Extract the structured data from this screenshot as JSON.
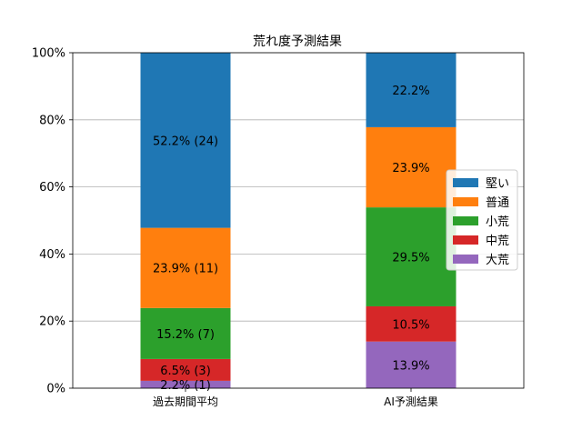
{
  "chart_data": {
    "type": "bar",
    "stacked": true,
    "title": "荒れ度予測結果",
    "xlabel": "",
    "ylabel": "",
    "ylim": [
      0,
      100
    ],
    "y_ticks": [
      "0%",
      "20%",
      "40%",
      "60%",
      "80%",
      "100%"
    ],
    "y_tick_values": [
      0,
      20,
      40,
      60,
      80,
      100
    ],
    "grid": "horizontal",
    "legend_position": "center-right",
    "categories": [
      "過去期間平均",
      "AI予測結果"
    ],
    "series": [
      {
        "name": "大荒",
        "color": "#9467bd",
        "values": [
          2.2,
          13.9
        ],
        "labels": [
          "2.2% (1)",
          "13.9%"
        ]
      },
      {
        "name": "中荒",
        "color": "#d62728",
        "values": [
          6.5,
          10.5
        ],
        "labels": [
          "6.5% (3)",
          "10.5%"
        ]
      },
      {
        "name": "小荒",
        "color": "#2ca02c",
        "values": [
          15.2,
          29.5
        ],
        "labels": [
          "15.2% (7)",
          "29.5%"
        ]
      },
      {
        "name": "普通",
        "color": "#ff7f0e",
        "values": [
          23.9,
          23.9
        ],
        "labels": [
          "23.9% (11)",
          "23.9%"
        ]
      },
      {
        "name": "堅い",
        "color": "#1f77b4",
        "values": [
          52.2,
          22.2
        ],
        "labels": [
          "52.2% (24)",
          "22.2%"
        ]
      }
    ],
    "legend_order": [
      "堅い",
      "普通",
      "小荒",
      "中荒",
      "大荒"
    ]
  }
}
